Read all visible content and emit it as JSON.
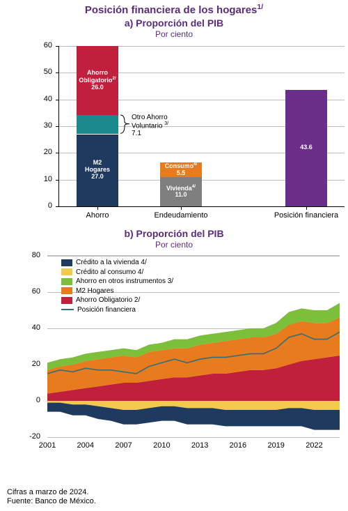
{
  "colors": {
    "title": "#5b2c7a",
    "axis": "#000000",
    "grid": "#bfbfbf",
    "m2": "#1f3a5f",
    "otro": "#1b8a8f",
    "obligatorio": "#c0203b",
    "vivienda": "#7f7f7f",
    "consumo": "#e87b1e",
    "posicion": "#6b2f8a",
    "credito_vivienda": "#1f3a5f",
    "credito_consumo": "#f2c94c",
    "ahorro_otros": "#7bbf3a",
    "m2_area": "#e87b1e",
    "obligatorio_area": "#c0203b",
    "posicion_line": "#2f6f7a"
  },
  "header": {
    "main": "Posición financiera de los hogares",
    "main_sup": "1/",
    "a_title": "a) Proporción del PIB",
    "a_sub": "Por ciento",
    "b_title": "b) Proporción del PIB",
    "b_sub": "Por ciento"
  },
  "chart_a": {
    "type": "stacked-bar",
    "y_min": 0,
    "y_max": 60,
    "y_step": 10,
    "categories": [
      "Ahorro",
      "Endeudamiento",
      "Posición financiera"
    ],
    "bars": {
      "Ahorro": [
        {
          "key": "m2",
          "label": "M2\nHogares",
          "value": 27.0,
          "display": "27.0",
          "color": "#1f3a5f"
        },
        {
          "key": "otro",
          "label": "",
          "value": 7.1,
          "display": "",
          "color": "#1b8a8f"
        },
        {
          "key": "obligatorio",
          "label": "Ahorro\nObligatorio",
          "sup": "2/",
          "value": 26.0,
          "display": "26.0",
          "color": "#c0203b"
        }
      ],
      "Endeudamiento": [
        {
          "key": "vivienda",
          "label": "Vivienda",
          "sup": "4/",
          "value": 11.0,
          "display": "11.0",
          "color": "#7f7f7f"
        },
        {
          "key": "consumo",
          "label": "Consumo",
          "sup": "4/",
          "value": 5.5,
          "display": "5.5",
          "color": "#e87b1e"
        }
      ],
      "Posición financiera": [
        {
          "key": "posicion",
          "label": "",
          "value": 43.6,
          "display": "43.6",
          "color": "#6b2f8a"
        }
      ]
    },
    "annotation": {
      "text": "Otro Ahorro\nVoluntario",
      "sup": "3/",
      "value": "7.1"
    }
  },
  "chart_b": {
    "type": "stacked-area-line",
    "y_min": -20,
    "y_max": 80,
    "y_step": 20,
    "x_min": 2001,
    "x_max": 2024,
    "x_ticks": [
      2001,
      2004,
      2007,
      2010,
      2013,
      2016,
      2019,
      2022
    ],
    "legend": [
      {
        "label": "Crédito a la vivienda 4/",
        "swatch": "#1f3a5f",
        "type": "box"
      },
      {
        "label": "Crédito al consumo 4/",
        "swatch": "#f2c94c",
        "type": "box"
      },
      {
        "label": "Ahorro en otros instrumentos 3/",
        "swatch": "#7bbf3a",
        "type": "box"
      },
      {
        "label": "M2 Hogares",
        "swatch": "#e87b1e",
        "type": "box"
      },
      {
        "label": "Ahorro Obligatorio 2/",
        "swatch": "#c0203b",
        "type": "box"
      },
      {
        "label": "Posición financiera",
        "swatch": "#2f6f7a",
        "type": "line"
      }
    ],
    "years": [
      2001,
      2002,
      2003,
      2004,
      2005,
      2006,
      2007,
      2008,
      2009,
      2010,
      2011,
      2012,
      2013,
      2014,
      2015,
      2016,
      2017,
      2018,
      2019,
      2020,
      2021,
      2022,
      2023,
      2024
    ],
    "series": {
      "obligatorio": [
        4,
        5,
        6,
        7,
        8,
        9,
        10,
        10,
        11,
        12,
        13,
        13,
        14,
        15,
        15,
        16,
        17,
        17,
        18,
        20,
        22,
        23,
        24,
        25
      ],
      "m2": [
        13,
        14,
        14,
        15,
        15,
        15,
        15,
        14,
        16,
        16,
        16,
        16,
        17,
        17,
        18,
        18,
        18,
        18,
        19,
        22,
        22,
        20,
        19,
        21
      ],
      "otros": [
        4,
        4,
        4,
        4,
        4,
        4,
        4,
        4,
        4,
        4,
        5,
        5,
        5,
        5,
        5,
        5,
        5,
        5,
        6,
        7,
        7,
        7,
        7,
        8
      ],
      "credito_consumo": [
        -1,
        -1,
        -2,
        -2,
        -3,
        -4,
        -5,
        -5,
        -4,
        -3,
        -3,
        -4,
        -4,
        -4,
        -5,
        -5,
        -5,
        -5,
        -5,
        -4,
        -4,
        -5,
        -5,
        -5
      ],
      "credito_vivienda": [
        -5,
        -5,
        -6,
        -6,
        -7,
        -7,
        -8,
        -8,
        -8,
        -8,
        -8,
        -9,
        -9,
        -9,
        -9,
        -9,
        -9,
        -9,
        -9,
        -10,
        -10,
        -11,
        -11,
        -11
      ],
      "posicion": [
        15,
        17,
        16,
        18,
        17,
        17,
        16,
        15,
        19,
        21,
        23,
        21,
        23,
        24,
        24,
        25,
        26,
        26,
        29,
        35,
        37,
        34,
        34,
        38
      ]
    }
  },
  "footer": {
    "line1": "Cifras a marzo de 2024.",
    "line2": "Fuente: Banco de México."
  }
}
